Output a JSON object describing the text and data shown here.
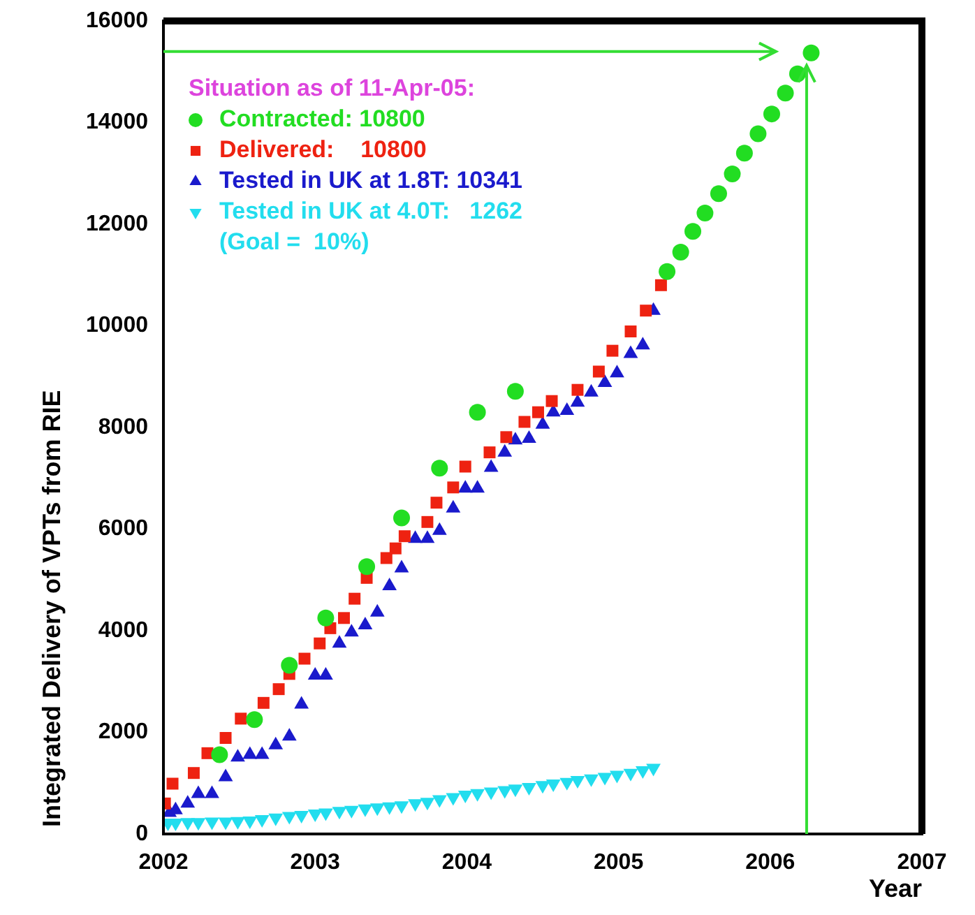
{
  "chart_data": {
    "type": "scatter",
    "ylabel": "Integrated Delivery of VPTs from RIE",
    "xlabel": "Year",
    "legend_title": "Situation as of 11-Apr-05:",
    "legend": "top left",
    "xlim": [
      2002,
      2007
    ],
    "xticks": [
      2002,
      2003,
      2004,
      2005,
      2006,
      2007
    ],
    "ylim": [
      0,
      16000
    ],
    "yticks": [
      0,
      2000,
      4000,
      6000,
      8000,
      10000,
      12000,
      14000,
      16000
    ],
    "grid": false,
    "ref_lines": [
      {
        "axis": "y",
        "value": 15400,
        "color": "#33dd33"
      },
      {
        "axis": "x",
        "value": 2006.24,
        "color": "#33dd33"
      }
    ],
    "series": [
      {
        "name": "Contracted: 10800",
        "color": "#22dd22",
        "marker": "circle",
        "x": [
          2002.37,
          2002.6,
          2002.83,
          2003.07,
          2003.34,
          2003.57,
          2003.82,
          2004.07,
          2004.32,
          2005.32,
          2005.41,
          2005.49,
          2005.57,
          2005.66,
          2005.75,
          2005.83,
          2005.92,
          2006.01,
          2006.1,
          2006.18,
          2006.27
        ],
        "values": [
          1560,
          2250,
          3320,
          4250,
          5260,
          6220,
          7200,
          8300,
          8710,
          11070,
          11450,
          11860,
          12220,
          12600,
          12990,
          13400,
          13780,
          14170,
          14580,
          14960,
          15370
        ]
      },
      {
        "name": "Delivered:    10800",
        "color": "#ee2211",
        "marker": "square",
        "x": [
          2002.01,
          2002.06,
          2002.2,
          2002.29,
          2002.41,
          2002.51,
          2002.66,
          2002.76,
          2002.83,
          2002.93,
          2003.03,
          2003.1,
          2003.19,
          2003.26,
          2003.34,
          2003.47,
          2003.53,
          2003.59,
          2003.74,
          2003.8,
          2003.91,
          2003.99,
          2004.15,
          2004.26,
          2004.38,
          2004.47,
          2004.56,
          2004.73,
          2004.87,
          2004.96,
          2005.08,
          2005.18,
          2005.28
        ],
        "values": [
          600,
          990,
          1200,
          1590,
          1890,
          2270,
          2580,
          2850,
          3150,
          3450,
          3750,
          4050,
          4250,
          4630,
          5040,
          5430,
          5620,
          5860,
          6140,
          6520,
          6820,
          7230,
          7510,
          7810,
          8110,
          8300,
          8520,
          8740,
          9100,
          9510,
          9890,
          10300,
          10800
        ]
      },
      {
        "name": "Tested in UK at 1.8T: 10341",
        "color": "#1a1acc",
        "marker": "triangle",
        "x": [
          2002.04,
          2002.08,
          2002.16,
          2002.23,
          2002.32,
          2002.41,
          2002.49,
          2002.57,
          2002.65,
          2002.74,
          2002.83,
          2002.91,
          2003.0,
          2003.07,
          2003.16,
          2003.24,
          2003.33,
          2003.41,
          2003.49,
          2003.57,
          2003.66,
          2003.74,
          2003.82,
          2003.91,
          2003.99,
          2004.07,
          2004.16,
          2004.25,
          2004.32,
          2004.41,
          2004.5,
          2004.57,
          2004.66,
          2004.73,
          2004.82,
          2004.91,
          2004.99,
          2005.08,
          2005.16,
          2005.23
        ],
        "values": [
          420,
          470,
          600,
          790,
          790,
          1120,
          1510,
          1560,
          1560,
          1750,
          1920,
          2550,
          3120,
          3120,
          3750,
          3970,
          4110,
          4360,
          4880,
          5230,
          5810,
          5810,
          5970,
          6410,
          6800,
          6800,
          7210,
          7510,
          7750,
          7780,
          8060,
          8300,
          8330,
          8490,
          8690,
          8880,
          9070,
          9450,
          9620,
          10300
        ]
      },
      {
        "name": "Tested in UK at 4.0T:   1262\n(Goal =  10%)",
        "color": "#22ddee",
        "marker": "triangle-down",
        "x": [
          2002.03,
          2002.08,
          2002.16,
          2002.23,
          2002.32,
          2002.41,
          2002.49,
          2002.57,
          2002.65,
          2002.74,
          2002.83,
          2002.91,
          2003.0,
          2003.07,
          2003.16,
          2003.24,
          2003.33,
          2003.41,
          2003.49,
          2003.57,
          2003.66,
          2003.74,
          2003.82,
          2003.91,
          2003.99,
          2004.07,
          2004.16,
          2004.25,
          2004.32,
          2004.41,
          2004.5,
          2004.57,
          2004.66,
          2004.73,
          2004.82,
          2004.91,
          2004.99,
          2005.08,
          2005.16,
          2005.23
        ],
        "values": [
          220,
          220,
          230,
          230,
          240,
          240,
          250,
          260,
          290,
          320,
          350,
          370,
          400,
          420,
          450,
          470,
          500,
          520,
          540,
          560,
          600,
          630,
          680,
          720,
          770,
          800,
          830,
          860,
          890,
          920,
          960,
          990,
          1020,
          1060,
          1090,
          1120,
          1160,
          1200,
          1250,
          1300
        ]
      }
    ]
  }
}
